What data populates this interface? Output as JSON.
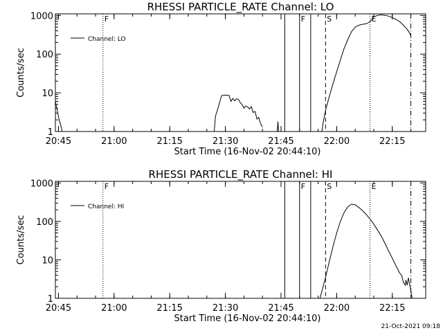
{
  "timestamp": "21-Oct-2021 09:18",
  "chart_data": [
    {
      "type": "line",
      "title": "RHESSI PARTICLE_RATE Channel: LO",
      "xlabel": "Start Time (16-Nov-02 20:44:10)",
      "ylabel": "Counts/sec",
      "yscale": "log",
      "ylim": [
        1,
        1100
      ],
      "xlim": [
        "20:44:10",
        "22:24:00"
      ],
      "x_ticks": [
        "20:45",
        "21:00",
        "21:15",
        "21:30",
        "21:45",
        "22:00",
        "22:15"
      ],
      "y_ticks": [
        "1",
        "10",
        "100",
        "1000"
      ],
      "legend": {
        "position": "top-left",
        "entries": [
          "Channel: LO"
        ]
      },
      "markers": [
        {
          "time": "20:57",
          "style": "dotted",
          "label": "F"
        },
        {
          "time": "21:46",
          "style": "solid",
          "label": ""
        },
        {
          "time": "21:50",
          "style": "solid",
          "label": "F"
        },
        {
          "time": "21:53",
          "style": "solid",
          "label": ""
        },
        {
          "time": "21:57",
          "style": "dashed",
          "label": "S"
        },
        {
          "time": "22:09",
          "style": "dotted",
          "label": "E"
        },
        {
          "time": "22:20",
          "style": "dashdot",
          "label": ""
        }
      ],
      "series": [
        {
          "name": "Channel: LO",
          "segments": [
            [
              [
                "20:44:10",
                6
              ],
              [
                "20:44:40",
                3.5
              ],
              [
                "20:45:10",
                2
              ],
              [
                "20:45:40",
                1.4
              ],
              [
                "20:46:00",
                1
              ]
            ],
            [
              [
                "21:27:00",
                1
              ],
              [
                "21:27:20",
                2.5
              ],
              [
                "21:28:00",
                4
              ],
              [
                "21:28:30",
                6
              ],
              [
                "21:29:00",
                8.5
              ],
              [
                "21:30:00",
                8.7
              ],
              [
                "21:31:00",
                8.5
              ],
              [
                "21:31:30",
                6
              ],
              [
                "21:32:00",
                7.2
              ],
              [
                "21:32:30",
                6.2
              ],
              [
                "21:33:00",
                7
              ],
              [
                "21:33:30",
                6.8
              ],
              [
                "21:34:00",
                5.6
              ],
              [
                "21:34:30",
                5
              ],
              [
                "21:35:00",
                4
              ],
              [
                "21:35:30",
                4.6
              ],
              [
                "21:36:00",
                4.3
              ],
              [
                "21:36:30",
                3.8
              ],
              [
                "21:37:00",
                4.4
              ],
              [
                "21:37:30",
                3.1
              ],
              [
                "21:38:00",
                3.3
              ],
              [
                "21:38:30",
                2.1
              ],
              [
                "21:39:00",
                2.3
              ],
              [
                "21:39:30",
                1.6
              ],
              [
                "21:40:00",
                1.3
              ]
            ],
            [
              [
                "21:44:00",
                1
              ],
              [
                "21:44:10",
                1.8
              ],
              [
                "21:44:20",
                1
              ]
            ],
            [
              [
                "21:56:00",
                1
              ],
              [
                "21:56:30",
                2
              ],
              [
                "21:57:00",
                3.5
              ],
              [
                "21:58:00",
                8
              ],
              [
                "21:59:00",
                17
              ],
              [
                "22:00:00",
                35
              ],
              [
                "22:01:00",
                70
              ],
              [
                "22:02:00",
                140
              ],
              [
                "22:03:00",
                240
              ],
              [
                "22:04:00",
                380
              ],
              [
                "22:05:00",
                500
              ],
              [
                "22:06:00",
                560
              ],
              [
                "22:07:00",
                590
              ],
              [
                "22:08:00",
                610
              ],
              [
                "22:09:00",
                690
              ],
              [
                "22:10:00",
                920
              ],
              [
                "22:11:00",
                1000
              ],
              [
                "22:12:00",
                1040
              ],
              [
                "22:13:00",
                1000
              ],
              [
                "22:14:00",
                960
              ],
              [
                "22:15:00",
                880
              ],
              [
                "22:16:00",
                790
              ],
              [
                "22:17:00",
                690
              ],
              [
                "22:18:00",
                560
              ],
              [
                "22:19:00",
                440
              ],
              [
                "22:19:40",
                350
              ],
              [
                "22:20:00",
                300
              ]
            ]
          ]
        }
      ]
    },
    {
      "type": "line",
      "title": "RHESSI PARTICLE_RATE Channel: HI",
      "xlabel": "Start Time (16-Nov-02 20:44:10)",
      "ylabel": "Counts/sec",
      "yscale": "log",
      "ylim": [
        1,
        1100
      ],
      "xlim": [
        "20:44:10",
        "22:24:00"
      ],
      "x_ticks": [
        "20:45",
        "21:00",
        "21:15",
        "21:30",
        "21:45",
        "22:00",
        "22:15"
      ],
      "y_ticks": [
        "1",
        "10",
        "100",
        "1000"
      ],
      "legend": {
        "position": "top-left",
        "entries": [
          "Channel: HI"
        ]
      },
      "markers": [
        {
          "time": "20:57",
          "style": "dotted",
          "label": "F"
        },
        {
          "time": "21:46",
          "style": "solid",
          "label": ""
        },
        {
          "time": "21:50",
          "style": "solid",
          "label": "F"
        },
        {
          "time": "21:53",
          "style": "solid",
          "label": ""
        },
        {
          "time": "21:57",
          "style": "dashed",
          "label": "S"
        },
        {
          "time": "22:09",
          "style": "dotted",
          "label": "E"
        },
        {
          "time": "22:20",
          "style": "dashdot",
          "label": ""
        }
      ],
      "series": [
        {
          "name": "Channel: HI",
          "segments": [
            [
              [
                "21:55:30",
                1
              ],
              [
                "21:56:00",
                1.5
              ],
              [
                "21:57:00",
                3.5
              ],
              [
                "21:58:00",
                9
              ],
              [
                "21:59:00",
                22
              ],
              [
                "22:00:00",
                50
              ],
              [
                "22:01:00",
                100
              ],
              [
                "22:02:00",
                170
              ],
              [
                "22:03:00",
                240
              ],
              [
                "22:04:00",
                280
              ],
              [
                "22:05:00",
                270
              ],
              [
                "22:06:00",
                230
              ],
              [
                "22:07:00",
                190
              ],
              [
                "22:08:00",
                150
              ],
              [
                "22:09:00",
                115
              ],
              [
                "22:10:00",
                85
              ],
              [
                "22:11:00",
                60
              ],
              [
                "22:12:00",
                42
              ],
              [
                "22:13:00",
                27
              ],
              [
                "22:14:00",
                17
              ],
              [
                "22:15:00",
                11
              ],
              [
                "22:16:00",
                7
              ],
              [
                "22:17:00",
                4.5
              ],
              [
                "22:17:30",
                4
              ],
              [
                "22:18:00",
                2.6
              ],
              [
                "22:18:30",
                2.2
              ],
              [
                "22:18:40",
                3
              ],
              [
                "22:19:00",
                2.2
              ],
              [
                "22:19:20",
                3.4
              ],
              [
                "22:19:40",
                2.3
              ],
              [
                "22:20:00",
                1.6
              ],
              [
                "22:20:20",
                1
              ]
            ]
          ]
        }
      ]
    }
  ]
}
